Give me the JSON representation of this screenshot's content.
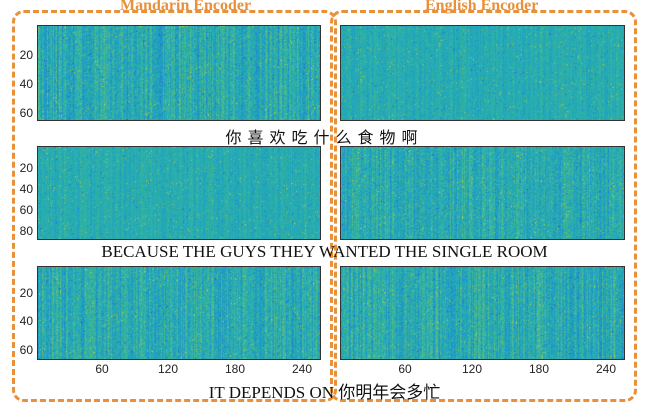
{
  "titles": {
    "left": "Mandarin Encoder",
    "right": "English Encoder"
  },
  "captions": [
    "你喜欢吃什么食物啊",
    "BECAUSE THE GUYS THEY WANTED THE SINGLE ROOM",
    "IT DEPENDS ON 你明年会多忙"
  ],
  "yticks": {
    "row1": [
      "20",
      "40",
      "60"
    ],
    "row2": [
      "20",
      "40",
      "60",
      "80"
    ],
    "row3": [
      "20",
      "40",
      "60"
    ]
  },
  "xticks": [
    "60",
    "120",
    "180",
    "240"
  ],
  "colors": {
    "accent": "#e8903a",
    "heat_low": "#2a3fb5",
    "heat_mid": "#2f9fb2",
    "heat_high": "#e8e23a"
  }
}
